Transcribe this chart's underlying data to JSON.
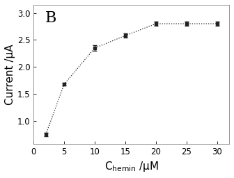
{
  "x": [
    2,
    5,
    10,
    15,
    20,
    25,
    30
  ],
  "y": [
    0.75,
    1.68,
    2.35,
    2.58,
    2.8,
    2.8,
    2.8
  ],
  "yerr": [
    0.03,
    0.03,
    0.05,
    0.04,
    0.04,
    0.04,
    0.04
  ],
  "xlabel_normal": "C",
  "xlabel_sub": "hemin",
  "xlabel_end": " /μM",
  "ylabel": "Current /μA",
  "xlim": [
    0,
    32
  ],
  "ylim": [
    0.58,
    3.15
  ],
  "xticks": [
    0,
    5,
    10,
    15,
    20,
    25,
    30
  ],
  "yticks": [
    1.0,
    1.5,
    2.0,
    2.5,
    3.0
  ],
  "label": "B",
  "line_color": "#bbbbbb",
  "marker_color": "#222222",
  "background_color": "#ffffff",
  "axis_label_fontsize": 11,
  "tick_fontsize": 8.5,
  "label_fontsize": 16
}
